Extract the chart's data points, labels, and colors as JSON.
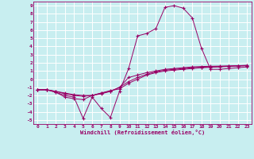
{
  "xlabel": "Windchill (Refroidissement éolien,°C)",
  "background_color": "#c8eef0",
  "grid_color": "#ffffff",
  "line_color": "#990066",
  "xlim": [
    -0.5,
    23.5
  ],
  "ylim": [
    -5.5,
    9.5
  ],
  "xticks": [
    0,
    1,
    2,
    3,
    4,
    5,
    6,
    7,
    8,
    9,
    10,
    11,
    12,
    13,
    14,
    15,
    16,
    17,
    18,
    19,
    20,
    21,
    22,
    23
  ],
  "yticks": [
    -5,
    -4,
    -3,
    -2,
    -1,
    0,
    1,
    2,
    3,
    4,
    5,
    6,
    7,
    8,
    9
  ],
  "line1_x": [
    0,
    1,
    2,
    3,
    4,
    5,
    6,
    7,
    8,
    9,
    10,
    11,
    12,
    13,
    14,
    15,
    16,
    17,
    18,
    19,
    20,
    21,
    22,
    23
  ],
  "line1_y": [
    -1.3,
    -1.3,
    -1.6,
    -2.0,
    -2.2,
    -4.8,
    -2.2,
    -3.6,
    -4.7,
    -1.5,
    1.3,
    5.3,
    5.6,
    6.2,
    8.8,
    9.0,
    8.7,
    7.5,
    3.8,
    1.2,
    1.2,
    1.3,
    1.4,
    1.5
  ],
  "line2_x": [
    0,
    1,
    2,
    3,
    4,
    5,
    6,
    7,
    8,
    9,
    10,
    11,
    12,
    13,
    14,
    15,
    16,
    17,
    18,
    19,
    20,
    21,
    22,
    23
  ],
  "line2_y": [
    -1.3,
    -1.3,
    -1.6,
    -2.2,
    -2.4,
    -2.5,
    -2.0,
    -1.7,
    -1.5,
    -1.0,
    0.2,
    0.5,
    0.8,
    1.0,
    1.2,
    1.3,
    1.4,
    1.5,
    1.55,
    1.58,
    1.6,
    1.62,
    1.63,
    1.65
  ],
  "line3_x": [
    0,
    1,
    2,
    3,
    4,
    5,
    6,
    7,
    8,
    9,
    10,
    11,
    12,
    13,
    14,
    15,
    16,
    17,
    18,
    19,
    20,
    21,
    22,
    23
  ],
  "line3_y": [
    -1.3,
    -1.3,
    -1.5,
    -1.7,
    -1.9,
    -2.0,
    -2.0,
    -1.7,
    -1.4,
    -1.2,
    -0.5,
    0.0,
    0.5,
    0.8,
    1.0,
    1.1,
    1.2,
    1.3,
    1.4,
    1.45,
    1.5,
    1.55,
    1.6,
    1.65
  ],
  "line4_x": [
    0,
    1,
    2,
    3,
    4,
    5,
    6,
    7,
    8,
    9,
    10,
    11,
    12,
    13,
    14,
    15,
    16,
    17,
    18,
    19,
    20,
    21,
    22,
    23
  ],
  "line4_y": [
    -1.3,
    -1.3,
    -1.5,
    -1.8,
    -2.0,
    -2.1,
    -2.0,
    -1.8,
    -1.5,
    -1.0,
    -0.3,
    0.2,
    0.6,
    0.9,
    1.1,
    1.2,
    1.3,
    1.4,
    1.45,
    1.5,
    1.55,
    1.6,
    1.65,
    1.7
  ],
  "xlabel_fontsize": 5.0,
  "tick_fontsize": 4.5,
  "marker_size": 3.0,
  "linewidth": 0.7
}
